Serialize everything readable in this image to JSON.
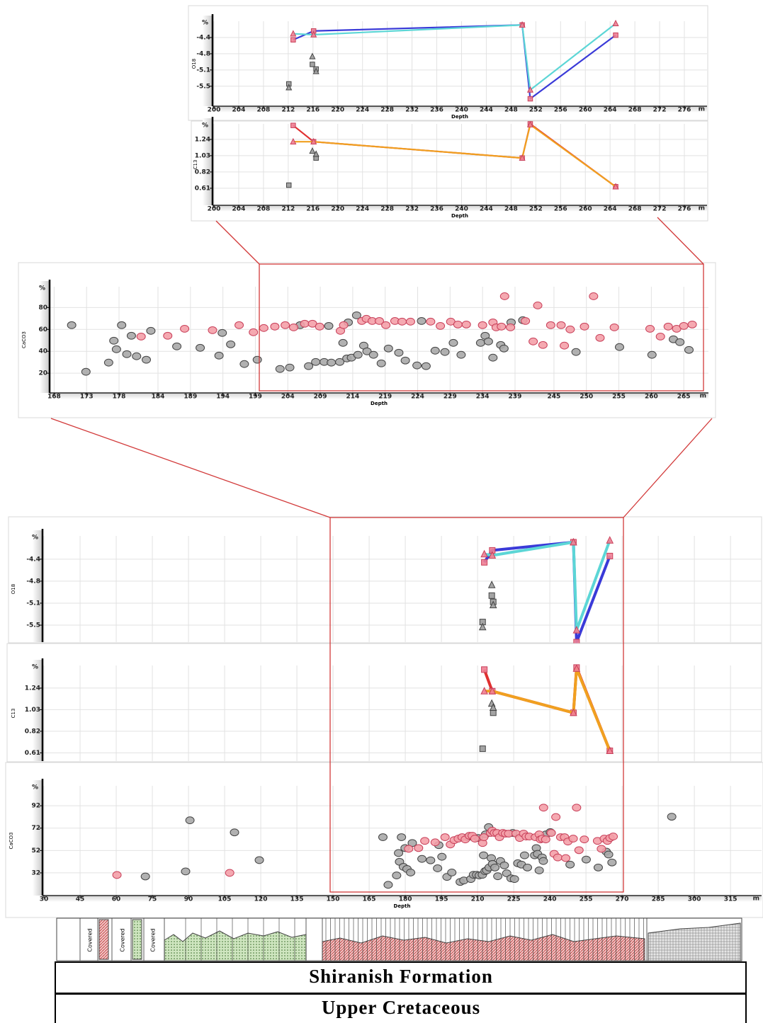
{
  "chart_data": [
    {
      "type": "line",
      "ylabel": "O18",
      "xlabel": "Depth",
      "y_unit": "%",
      "x_unit": "m",
      "xlim": [
        199.77,
        279.66
      ],
      "ylim": [
        -5.88,
        -4.05
      ],
      "xticks": [
        200,
        204,
        208,
        212,
        216,
        220,
        224,
        228,
        232,
        236,
        240,
        244,
        248,
        252,
        256,
        260,
        264,
        268,
        272,
        276
      ],
      "yticks": [
        -4.4,
        {
          "value": -4.75,
          "label": "-4.8"
        },
        -5.1,
        {
          "value": -5.45,
          "label": "-5.5"
        }
      ],
      "grid": true,
      "series": [
        {
          "color": "#3a3ad8",
          "line": true,
          "marker": "square",
          "marker_color": "#f07f93",
          "x": [
            212.8,
            216.1,
            249.8,
            251.1,
            264.9
          ],
          "values": [
            -4.45,
            -4.26,
            -4.13,
            -5.72,
            -4.35
          ]
        },
        {
          "color": "#5cd6d6",
          "line": true,
          "marker": "triangle",
          "marker_color": "#f07f93",
          "x": [
            212.8,
            216.1,
            249.8,
            251.1,
            264.9
          ],
          "values": [
            -4.32,
            -4.34,
            -4.13,
            -5.53,
            -4.1
          ]
        },
        {
          "color": "#9a9a9a",
          "line": false,
          "marker": "square",
          "marker_color": "#9a9a9a",
          "x": [
            212.1,
            215.9,
            216.5
          ],
          "values": [
            -5.4,
            -4.98,
            -5.08
          ]
        },
        {
          "color": "#9a9a9a",
          "line": false,
          "marker": "triangle",
          "marker_color": "#9a9a9a",
          "x": [
            212.1,
            215.9,
            216.5
          ],
          "values": [
            -5.48,
            -4.81,
            -5.13
          ]
        }
      ]
    },
    {
      "type": "line",
      "ylabel": "C13",
      "xlabel": "Depth",
      "y_unit": "%",
      "x_unit": "m",
      "xlim": [
        199.77,
        279.66
      ],
      "ylim": [
        0.39,
        1.44
      ],
      "xticks": [
        200,
        204,
        208,
        212,
        216,
        220,
        224,
        228,
        232,
        236,
        240,
        244,
        248,
        252,
        256,
        260,
        264,
        268,
        272,
        276
      ],
      "yticks": [
        1.24,
        1.03,
        0.82,
        0.61
      ],
      "grid": true,
      "series": [
        {
          "color": "#e03030",
          "line": true,
          "marker": "square",
          "marker_color": "#f07f93",
          "x": [
            212.8,
            216.1,
            249.8,
            251.1,
            264.9
          ],
          "values": [
            1.42,
            1.21,
            1.0,
            1.44,
            0.63
          ]
        },
        {
          "color": "#f0a020",
          "line": true,
          "marker": "triangle",
          "marker_color": "#f07f93",
          "x": [
            212.8,
            216.1,
            249.8,
            251.1,
            264.9
          ],
          "values": [
            1.21,
            1.21,
            1.0,
            1.43,
            0.63
          ]
        },
        {
          "color": "#9a9a9a",
          "line": false,
          "marker": "square",
          "marker_color": "#9a9a9a",
          "x": [
            212.1,
            216.5
          ],
          "values": [
            0.65,
            1.0
          ]
        },
        {
          "color": "#9a9a9a",
          "line": false,
          "marker": "triangle",
          "marker_color": "#9a9a9a",
          "x": [
            215.9,
            216.5
          ],
          "values": [
            1.09,
            1.05
          ]
        }
      ]
    },
    {
      "type": "scatter",
      "ylabel": "CaCO3",
      "xlabel": "Depth",
      "y_unit": "%",
      "x_unit": "m",
      "xlim": [
        167.3,
        268.8
      ],
      "ylim": [
        2,
        99
      ],
      "xticks": [
        168,
        173,
        178,
        184,
        189,
        194,
        199,
        204,
        209,
        214,
        219,
        224,
        229,
        234,
        239,
        245,
        250,
        255,
        260,
        265
      ],
      "yticks": [
        20,
        40,
        60,
        80
      ],
      "grid": true,
      "series": [
        {
          "color": "#a8a8a8",
          "line": false,
          "marker": "circle",
          "marker_color": "#a8a8a8",
          "x": [
            170.7,
            172.9,
            176.4,
            177.2,
            177.6,
            178.4,
            179.2,
            179.9,
            180.7,
            182.2,
            182.9,
            186.9,
            190.5,
            193.4,
            193.9,
            195.2,
            197.3,
            199.3,
            202.8,
            204.3,
            205.9,
            207.2,
            208.3,
            209.6,
            210.3,
            210.7,
            212.0,
            212.5,
            213.1,
            213.3,
            213.8,
            214.6,
            214.8,
            215.7,
            216.2,
            217.2,
            218.4,
            219.5,
            221.1,
            222.1,
            223.9,
            224.6,
            225.3,
            226.7,
            228.2,
            229.5,
            230.7,
            233.7,
            234.4,
            234.9,
            235.6,
            236.8,
            237.3,
            238.4,
            240.2,
            248.4,
            255.1,
            260.1,
            263.4,
            264.4,
            265.8
          ],
          "values": [
            63.9,
            21.3,
            29.7,
            49.7,
            41.9,
            63.9,
            37.4,
            54.2,
            35.5,
            32.3,
            58.7,
            44.5,
            43.2,
            36.1,
            56.8,
            46.4,
            28.4,
            32.3,
            23.9,
            25.2,
            63.9,
            26.5,
            30.3,
            30.3,
            63.2,
            29.7,
            30.3,
            47.7,
            33.5,
            66.4,
            34.2,
            72.9,
            36.8,
            45.2,
            40.0,
            36.8,
            29.0,
            42.6,
            38.7,
            31.6,
            27.1,
            67.7,
            26.5,
            40.6,
            39.4,
            47.7,
            36.8,
            47.7,
            54.2,
            49.0,
            34.2,
            45.8,
            42.6,
            66.4,
            68.4,
            39.4,
            43.9,
            36.8,
            51.0,
            48.4,
            41.3
          ]
        },
        {
          "color": "#f4a0a8",
          "line": false,
          "marker": "circle",
          "marker_color": "#f4a0a8",
          "x": [
            181.4,
            185.5,
            188.1,
            192.4,
            196.5,
            198.7,
            200.3,
            202.0,
            203.6,
            204.9,
            206.6,
            207.8,
            208.9,
            212.1,
            212.6,
            215.4,
            216.1,
            217.0,
            218.1,
            219.1,
            220.5,
            221.6,
            222.9,
            226.0,
            227.5,
            229.1,
            230.2,
            231.5,
            234.0,
            235.6,
            236.1,
            236.9,
            237.4,
            238.3,
            240.6,
            241.8,
            242.5,
            243.3,
            244.5,
            246.1,
            246.6,
            247.5,
            249.7,
            251.1,
            252.1,
            254.3,
            259.8,
            261.4,
            262.6,
            263.9,
            265.0,
            266.3
          ],
          "values": [
            53.5,
            54.2,
            60.6,
            59.3,
            63.9,
            57.4,
            61.3,
            62.6,
            63.9,
            61.9,
            65.2,
            65.2,
            62.6,
            58.7,
            63.9,
            67.7,
            69.7,
            67.7,
            67.7,
            63.9,
            67.7,
            67.1,
            67.1,
            67.1,
            63.2,
            67.1,
            64.5,
            64.5,
            63.9,
            66.4,
            61.9,
            62.6,
            90.3,
            61.9,
            67.7,
            49.0,
            81.9,
            45.8,
            63.9,
            63.9,
            45.2,
            60.0,
            62.6,
            90.3,
            52.3,
            61.9,
            60.6,
            53.5,
            62.6,
            60.6,
            63.2,
            64.5
          ]
        }
      ]
    },
    {
      "type": "line",
      "ylabel": "O18",
      "y_unit": "%",
      "xlim": [
        29.4,
        327.9
      ],
      "ylim": [
        -5.72,
        -4.03
      ],
      "yticks": [
        -4.4,
        {
          "value": -4.75,
          "label": "-4.8"
        },
        -5.1,
        {
          "value": -5.45,
          "label": "-5.5"
        }
      ],
      "grid": true,
      "series": [
        {
          "color": "#3a3ad8",
          "line": true,
          "marker": "square",
          "marker_color": "#f07f93",
          "x": [
            212.8,
            216.1,
            249.8,
            251.1,
            264.9
          ],
          "values": [
            -4.45,
            -4.26,
            -4.13,
            -5.72,
            -4.35
          ]
        },
        {
          "color": "#5cd6d6",
          "line": true,
          "marker": "triangle",
          "marker_color": "#f07f93",
          "x": [
            212.8,
            216.1,
            249.8,
            251.1,
            264.9
          ],
          "values": [
            -4.32,
            -4.34,
            -4.13,
            -5.53,
            -4.1
          ]
        },
        {
          "color": "#9a9a9a",
          "line": false,
          "marker": "square",
          "marker_color": "#9a9a9a",
          "x": [
            212.1,
            215.9,
            216.5
          ],
          "values": [
            -5.4,
            -4.98,
            -5.08
          ]
        },
        {
          "color": "#9a9a9a",
          "line": false,
          "marker": "triangle",
          "marker_color": "#9a9a9a",
          "x": [
            212.1,
            215.9,
            216.5
          ],
          "values": [
            -5.48,
            -4.81,
            -5.13
          ]
        }
      ]
    },
    {
      "type": "line",
      "ylabel": "C13",
      "y_unit": "%",
      "xlim": [
        29.4,
        327.9
      ],
      "ylim": [
        0.53,
        1.46
      ],
      "yticks": [
        1.24,
        1.03,
        0.82,
        0.61
      ],
      "grid": true,
      "series": [
        {
          "color": "#e03030",
          "line": true,
          "marker": "square",
          "marker_color": "#f07f93",
          "x": [
            212.8,
            216.1,
            249.8,
            251.1,
            264.9
          ],
          "values": [
            1.42,
            1.21,
            1.0,
            1.44,
            0.63
          ]
        },
        {
          "color": "#f0a020",
          "line": true,
          "marker": "triangle",
          "marker_color": "#f07f93",
          "x": [
            212.8,
            216.1,
            249.8,
            251.1,
            264.9
          ],
          "values": [
            1.21,
            1.21,
            1.0,
            1.43,
            0.63
          ]
        },
        {
          "color": "#9a9a9a",
          "line": false,
          "marker": "square",
          "marker_color": "#9a9a9a",
          "x": [
            212.1,
            216.5
          ],
          "values": [
            0.65,
            1.0
          ]
        },
        {
          "color": "#9a9a9a",
          "line": false,
          "marker": "triangle",
          "marker_color": "#9a9a9a",
          "x": [
            215.9,
            216.5
          ],
          "values": [
            1.09,
            1.05
          ]
        }
      ]
    },
    {
      "type": "scatter",
      "ylabel": "CaCO3",
      "xlabel": "Depth",
      "y_unit": "%",
      "x_unit": "m",
      "xlim": [
        29.4,
        327.9
      ],
      "ylim": [
        11.7,
        109.8
      ],
      "xticks": [
        30,
        45,
        60,
        75,
        90,
        105,
        120,
        135,
        150,
        165,
        180,
        195,
        210,
        225,
        240,
        255,
        270,
        285,
        300,
        315
      ],
      "yticks": [
        32,
        52,
        72,
        92
      ],
      "grid": true,
      "series": [
        {
          "color": "#a8a8a8",
          "line": false,
          "marker": "circle",
          "marker_color": "#a8a8a8",
          "x": [
            72.1,
            88.8,
            90.6,
            109.1,
            119.4,
            170.7,
            172.9,
            176.4,
            177.2,
            177.6,
            178.4,
            179.2,
            179.9,
            180.7,
            182.2,
            182.9,
            186.9,
            190.5,
            193.4,
            193.9,
            195.2,
            197.3,
            199.3,
            202.8,
            204.3,
            205.9,
            207.2,
            208.3,
            209.6,
            210.3,
            210.7,
            212.0,
            212.5,
            213.1,
            213.3,
            213.8,
            214.6,
            214.8,
            215.7,
            216.2,
            217.2,
            218.4,
            219.5,
            221.1,
            222.1,
            223.9,
            224.6,
            225.3,
            226.7,
            228.2,
            229.5,
            230.7,
            233.7,
            234.4,
            234.9,
            235.6,
            236.8,
            237.3,
            238.4,
            240.2,
            248.4,
            255.1,
            260.1,
            263.4,
            264.4,
            265.8,
            290.6
          ],
          "values": [
            28.8,
            33.3,
            79.0,
            68.2,
            43.4,
            63.9,
            21.3,
            29.7,
            49.7,
            41.9,
            63.9,
            37.4,
            54.2,
            35.5,
            32.3,
            58.7,
            44.5,
            43.2,
            36.1,
            56.8,
            46.4,
            28.4,
            32.3,
            23.9,
            25.2,
            63.9,
            26.5,
            30.3,
            30.3,
            63.2,
            29.7,
            30.3,
            47.7,
            33.5,
            66.4,
            34.2,
            72.9,
            36.8,
            45.2,
            40.0,
            36.8,
            29.0,
            42.6,
            38.7,
            31.6,
            27.1,
            67.7,
            26.5,
            40.6,
            39.4,
            47.7,
            36.8,
            47.7,
            54.2,
            49.0,
            34.2,
            45.8,
            42.6,
            66.4,
            68.4,
            39.4,
            43.9,
            36.8,
            51.0,
            48.4,
            41.3,
            82.2
          ]
        },
        {
          "color": "#f4a0a8",
          "line": false,
          "marker": "circle",
          "marker_color": "#f4a0a8",
          "x": [
            60.3,
            107.1,
            181.4,
            185.5,
            188.1,
            192.4,
            196.5,
            198.7,
            200.3,
            202.0,
            203.6,
            204.9,
            206.6,
            207.8,
            208.9,
            212.1,
            212.6,
            215.4,
            216.1,
            217.0,
            218.1,
            219.1,
            220.5,
            221.6,
            222.9,
            226.0,
            227.5,
            229.1,
            230.2,
            231.5,
            234.0,
            235.6,
            236.1,
            236.9,
            237.4,
            238.3,
            240.6,
            241.8,
            242.5,
            243.3,
            244.5,
            246.1,
            246.6,
            247.5,
            249.7,
            251.1,
            252.1,
            254.3,
            259.8,
            261.4,
            262.6,
            263.9,
            265.0,
            266.3
          ],
          "values": [
            30.1,
            32.0,
            53.5,
            54.2,
            60.6,
            59.3,
            63.9,
            57.4,
            61.3,
            62.6,
            63.9,
            61.9,
            65.2,
            65.2,
            62.6,
            58.7,
            63.9,
            67.7,
            69.7,
            67.7,
            67.7,
            63.9,
            67.7,
            67.1,
            67.1,
            67.1,
            63.2,
            67.1,
            64.5,
            64.5,
            63.9,
            66.4,
            61.9,
            62.6,
            90.3,
            61.9,
            67.7,
            49.0,
            81.9,
            45.8,
            63.9,
            63.9,
            45.2,
            60.0,
            62.6,
            90.3,
            52.3,
            61.9,
            60.6,
            53.5,
            62.6,
            60.6,
            63.2,
            64.5
          ]
        }
      ]
    }
  ],
  "lithology": {
    "labels": [
      "Covered",
      "Covered",
      "Covered"
    ]
  },
  "formation": "Shiranish Formation",
  "age": "Upper Cretaceous"
}
